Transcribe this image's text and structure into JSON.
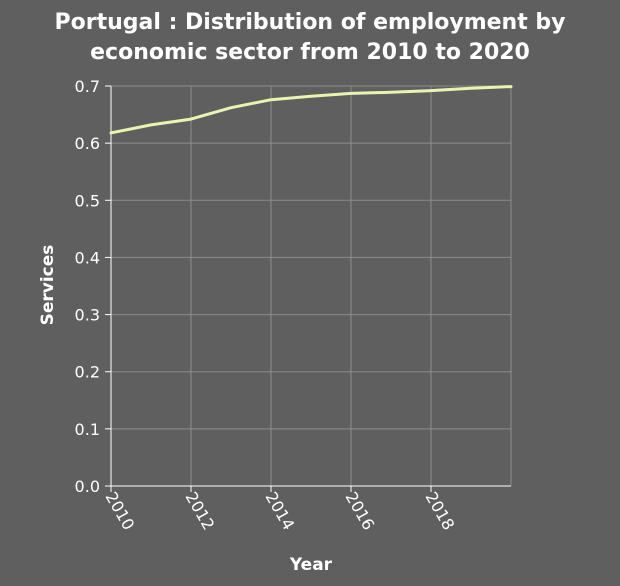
{
  "chart_data": {
    "type": "line",
    "title_lines": [
      "Portugal : Distribution of employment by",
      "economic sector from 2010 to 2020"
    ],
    "xlabel": "Year",
    "ylabel": "Services",
    "xlim": [
      2010,
      2020
    ],
    "ylim": [
      0,
      0.7
    ],
    "x_ticks": [
      2010,
      2012,
      2014,
      2016,
      2018
    ],
    "x_tick_labels": [
      "2010",
      "2012",
      "2014",
      "2016",
      "2018"
    ],
    "y_ticks": [
      0,
      0.1,
      0.2,
      0.3,
      0.4,
      0.5,
      0.6,
      0.7
    ],
    "y_tick_labels": [
      "0.0",
      "0.1",
      "0.2",
      "0.3",
      "0.4",
      "0.5",
      "0.6",
      "0.7"
    ],
    "grid": true,
    "series": [
      {
        "color": "#e8f5b0",
        "x": [
          2010,
          2011,
          2012,
          2013,
          2014,
          2015,
          2016,
          2017,
          2018,
          2019,
          2020
        ],
        "values": [
          0.618,
          0.632,
          0.642,
          0.662,
          0.676,
          0.682,
          0.687,
          0.689,
          0.692,
          0.696,
          0.699
        ]
      }
    ]
  }
}
